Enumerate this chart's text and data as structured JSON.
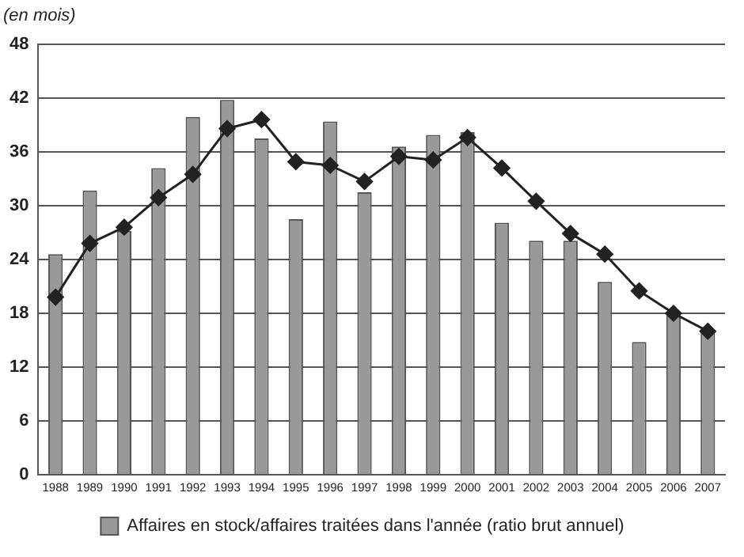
{
  "chart_data": {
    "type": "bar",
    "ylabel": "(en mois)",
    "categories": [
      "1988",
      "1989",
      "1990",
      "1991",
      "1992",
      "1993",
      "1994",
      "1995",
      "1996",
      "1997",
      "1998",
      "1999",
      "2000",
      "2001",
      "2002",
      "2003",
      "2004",
      "2005",
      "2006",
      "2007"
    ],
    "series": [
      {
        "name": "Affaires en stock/affaires traitées dans l'année (ratio brut annuel)",
        "color": "#999999",
        "values": [
          24.6,
          31.7,
          27.2,
          34.2,
          39.9,
          41.8,
          37.5,
          28.5,
          39.4,
          31.5,
          36.6,
          37.9,
          38.2,
          28.1,
          26.1,
          26.1,
          21.5,
          14.8,
          17.8,
          16.2
        ]
      },
      {
        "type": "line",
        "color": "#222222",
        "marker": "diamond",
        "values": [
          19.8,
          25.8,
          27.6,
          30.9,
          33.5,
          38.6,
          39.6,
          34.9,
          34.5,
          32.7,
          35.5,
          35.1,
          37.6,
          34.2,
          30.5,
          26.9,
          24.6,
          20.5,
          18.0,
          16.0
        ]
      }
    ],
    "ylim": [
      0,
      48
    ],
    "yticks": [
      0,
      6,
      12,
      18,
      24,
      30,
      36,
      42,
      48
    ],
    "grid": "y",
    "legend": "bottom"
  }
}
